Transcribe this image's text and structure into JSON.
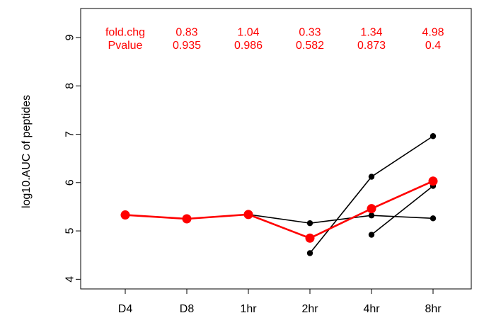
{
  "chart_data": {
    "type": "line",
    "ylabel": "log10.AUC of peptides",
    "xlabel": "",
    "categories": [
      "D4",
      "D8",
      "1hr",
      "2hr",
      "4hr",
      "8hr"
    ],
    "ylim": [
      3.8,
      9.6
    ],
    "yticks": [
      4,
      5,
      6,
      7,
      8,
      9
    ],
    "grid": false,
    "accent_color": "#ff0000",
    "individual_color": "#000000",
    "mean_series": {
      "values": [
        5.33,
        5.25,
        5.34,
        4.85,
        5.46,
        6.03
      ]
    },
    "individual_points": [
      {
        "x": "1hr",
        "values": [
          5.34
        ]
      },
      {
        "x": "2hr",
        "values": [
          5.16,
          4.54
        ]
      },
      {
        "x": "4hr",
        "values": [
          6.12,
          5.32,
          4.92
        ]
      },
      {
        "x": "8hr",
        "values": [
          6.96,
          5.93,
          5.26
        ]
      }
    ],
    "individual_lines": [
      {
        "from": [
          "1hr",
          5.34
        ],
        "to": [
          "2hr",
          5.16
        ]
      },
      {
        "from": [
          "2hr",
          5.16
        ],
        "to": [
          "4hr",
          5.32
        ]
      },
      {
        "from": [
          "4hr",
          5.32
        ],
        "to": [
          "8hr",
          5.26
        ]
      },
      {
        "from": [
          "2hr",
          4.54
        ],
        "to": [
          "4hr",
          6.12
        ]
      },
      {
        "from": [
          "4hr",
          6.12
        ],
        "to": [
          "8hr",
          6.96
        ]
      },
      {
        "from": [
          "4hr",
          4.92
        ],
        "to": [
          "8hr",
          5.93
        ]
      }
    ],
    "annotations": {
      "rows": [
        {
          "label": "fold.chg",
          "y": 9.12,
          "values": [
            "0.83",
            "1.04",
            "0.33",
            "1.34",
            "4.98"
          ]
        },
        {
          "label": "Pvalue",
          "y": 8.85,
          "values": [
            "0.935",
            "0.986",
            "0.582",
            "0.873",
            "0.4"
          ]
        }
      ],
      "columns": [
        "D8",
        "1hr",
        "2hr",
        "4hr",
        "8hr"
      ],
      "label_column": "D4"
    }
  }
}
